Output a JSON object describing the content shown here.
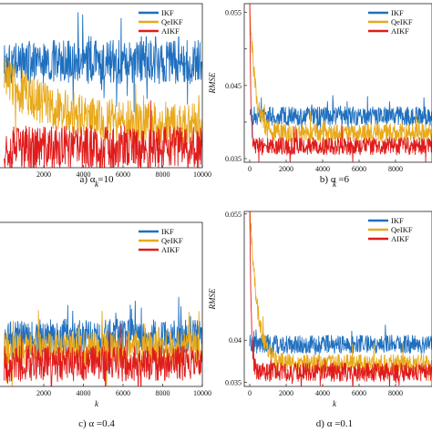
{
  "colors": {
    "IKF": "#1f6fbf",
    "QeIKF": "#e8a91a",
    "AIKF": "#e01b1b"
  },
  "chart_data": [
    {
      "type": "line",
      "caption": "a) α =10",
      "xlabel": "k",
      "ylabel": "",
      "xlim": [
        -300,
        10000
      ],
      "ylim": [
        0.0355,
        0.0445
      ],
      "xticks": [
        2000,
        4000,
        6000,
        8000,
        10000
      ],
      "yticks": [],
      "legend": "top-right",
      "series": [
        {
          "name": "IKF",
          "level": 0.0413,
          "amp": 0.0012
        },
        {
          "name": "QeIKF",
          "level": 0.0378,
          "start": 0.0405,
          "decay": 2500,
          "amp": 0.0012
        },
        {
          "name": "AIKF",
          "level": 0.0366,
          "amp": 0.0012
        }
      ]
    },
    {
      "type": "line",
      "caption": "b) α =6",
      "xlabel": "k",
      "ylabel": "RMSE",
      "xlim": [
        -300,
        10000
      ],
      "ylim": [
        0.0345,
        0.0562
      ],
      "xticks": [
        0,
        2000,
        4000,
        6000,
        8000
      ],
      "yticks": [
        0.035,
        0.04,
        0.045,
        0.05,
        0.055
      ],
      "yticklabels": [
        "0.035",
        "",
        "0.045",
        "",
        "0.055"
      ],
      "legend": "top-right",
      "series": [
        {
          "name": "IKF",
          "level": 0.0408,
          "amp": 0.0013
        },
        {
          "name": "QeIKF",
          "level": 0.0385,
          "start": 0.0565,
          "decay": 300,
          "amp": 0.0013
        },
        {
          "name": "AIKF",
          "level": 0.0367,
          "start": 0.0565,
          "decay": 60,
          "amp": 0.0012
        }
      ]
    },
    {
      "type": "line",
      "caption": "c) α =0.4",
      "xlabel": "k",
      "ylabel": "",
      "xlim": [
        -300,
        10000
      ],
      "ylim": [
        0.0345,
        0.0445
      ],
      "xticks": [
        2000,
        4000,
        6000,
        8000,
        10000
      ],
      "yticks": [],
      "legend": "top-right",
      "series": [
        {
          "name": "IKF",
          "level": 0.0375,
          "amp": 0.0011
        },
        {
          "name": "QeIKF",
          "level": 0.0368,
          "amp": 0.0011
        },
        {
          "name": "AIKF",
          "level": 0.0359,
          "amp": 0.0011
        }
      ]
    },
    {
      "type": "line",
      "caption": "d) α =0.1",
      "xlabel": "k",
      "ylabel": "RMSE",
      "xlim": [
        -300,
        10000
      ],
      "ylim": [
        0.0345,
        0.0553
      ],
      "xticks": [
        0,
        2000,
        4000,
        6000,
        8000
      ],
      "yticks": [
        0.035,
        0.04,
        0.055
      ],
      "yticklabels": [
        "0.035",
        "0.04",
        "0.055"
      ],
      "legend": "top-right",
      "series": [
        {
          "name": "IKF",
          "level": 0.0395,
          "amp": 0.0011
        },
        {
          "name": "QeIKF",
          "level": 0.0372,
          "start": 0.0565,
          "decay": 400,
          "amp": 0.0011
        },
        {
          "name": "AIKF",
          "level": 0.0362,
          "start": 0.0565,
          "decay": 80,
          "amp": 0.0011
        }
      ]
    }
  ],
  "legend_labels": [
    "IKF",
    "QeIKF",
    "AIKF"
  ]
}
